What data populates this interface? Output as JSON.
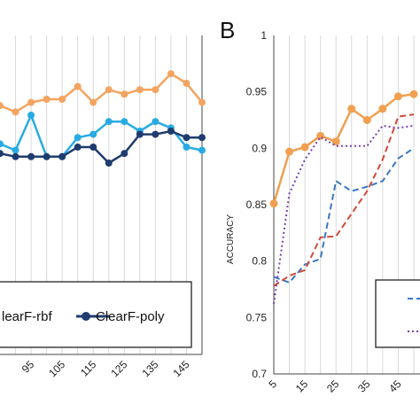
{
  "chart_data": [
    {
      "type": "line",
      "panel": "",
      "x": [
        85,
        90,
        95,
        100,
        105,
        110,
        115,
        120,
        125,
        130,
        135,
        140,
        145,
        150
      ],
      "xticks": [
        "95",
        "105",
        "115",
        "125",
        "135",
        "145"
      ],
      "ylim": [
        0,
        1
      ],
      "series": [
        {
          "name": "",
          "color": "#f4a460",
          "values": [
            0.94,
            0.93,
            0.945,
            0.95,
            0.95,
            0.97,
            0.945,
            0.965,
            0.958,
            0.965,
            0.965,
            0.99,
            0.975,
            0.945
          ]
        },
        {
          "name": "ClearF-rbf",
          "color": "#29abe2",
          "values": [
            0.88,
            0.87,
            0.925,
            0.86,
            0.86,
            0.89,
            0.895,
            0.915,
            0.915,
            0.9,
            0.915,
            0.905,
            0.875,
            0.87
          ]
        },
        {
          "name": "ClearF-poly",
          "color": "#1f3c6e",
          "values": [
            0.865,
            0.86,
            0.86,
            0.86,
            0.86,
            0.875,
            0.875,
            0.85,
            0.865,
            0.895,
            0.895,
            0.9,
            0.89,
            0.89
          ]
        }
      ],
      "grid": true
    },
    {
      "type": "line",
      "panel": "B",
      "ylabel": "ACCURACY",
      "x": [
        5,
        10,
        15,
        20,
        25,
        30,
        35,
        40,
        45,
        50
      ],
      "xticks": [
        "5",
        "15",
        "25",
        "35",
        "45"
      ],
      "yticks": [
        "1",
        "0.95",
        "0.9",
        "0.85",
        "0.8",
        "0.75",
        "0.7"
      ],
      "ylim": [
        0.7,
        1
      ],
      "series": [
        {
          "name": "",
          "style": "solid-marker",
          "color": "#f0a050",
          "values": [
            0.851,
            0.897,
            0.901,
            0.911,
            0.906,
            0.935,
            0.925,
            0.935,
            0.946,
            0.948
          ]
        },
        {
          "name": "",
          "style": "dashed",
          "color": "#3a78c0",
          "values": [
            0.786,
            0.781,
            0.797,
            0.802,
            0.871,
            0.862,
            0.866,
            0.871,
            0.891,
            0.9
          ]
        },
        {
          "name": "",
          "style": "dashed",
          "color": "#d04a3a",
          "values": [
            0.778,
            0.787,
            0.792,
            0.821,
            0.822,
            0.842,
            0.862,
            0.89,
            0.928,
            0.93
          ]
        },
        {
          "name": "",
          "style": "dotted",
          "color": "#7b3fb0",
          "values": [
            0.762,
            0.86,
            0.89,
            0.91,
            0.902,
            0.902,
            0.902,
            0.92,
            0.918,
            0.92
          ]
        }
      ],
      "grid": true
    }
  ],
  "legend_left": {
    "items": [
      "learF-rbf",
      "ClearF-poly"
    ]
  }
}
